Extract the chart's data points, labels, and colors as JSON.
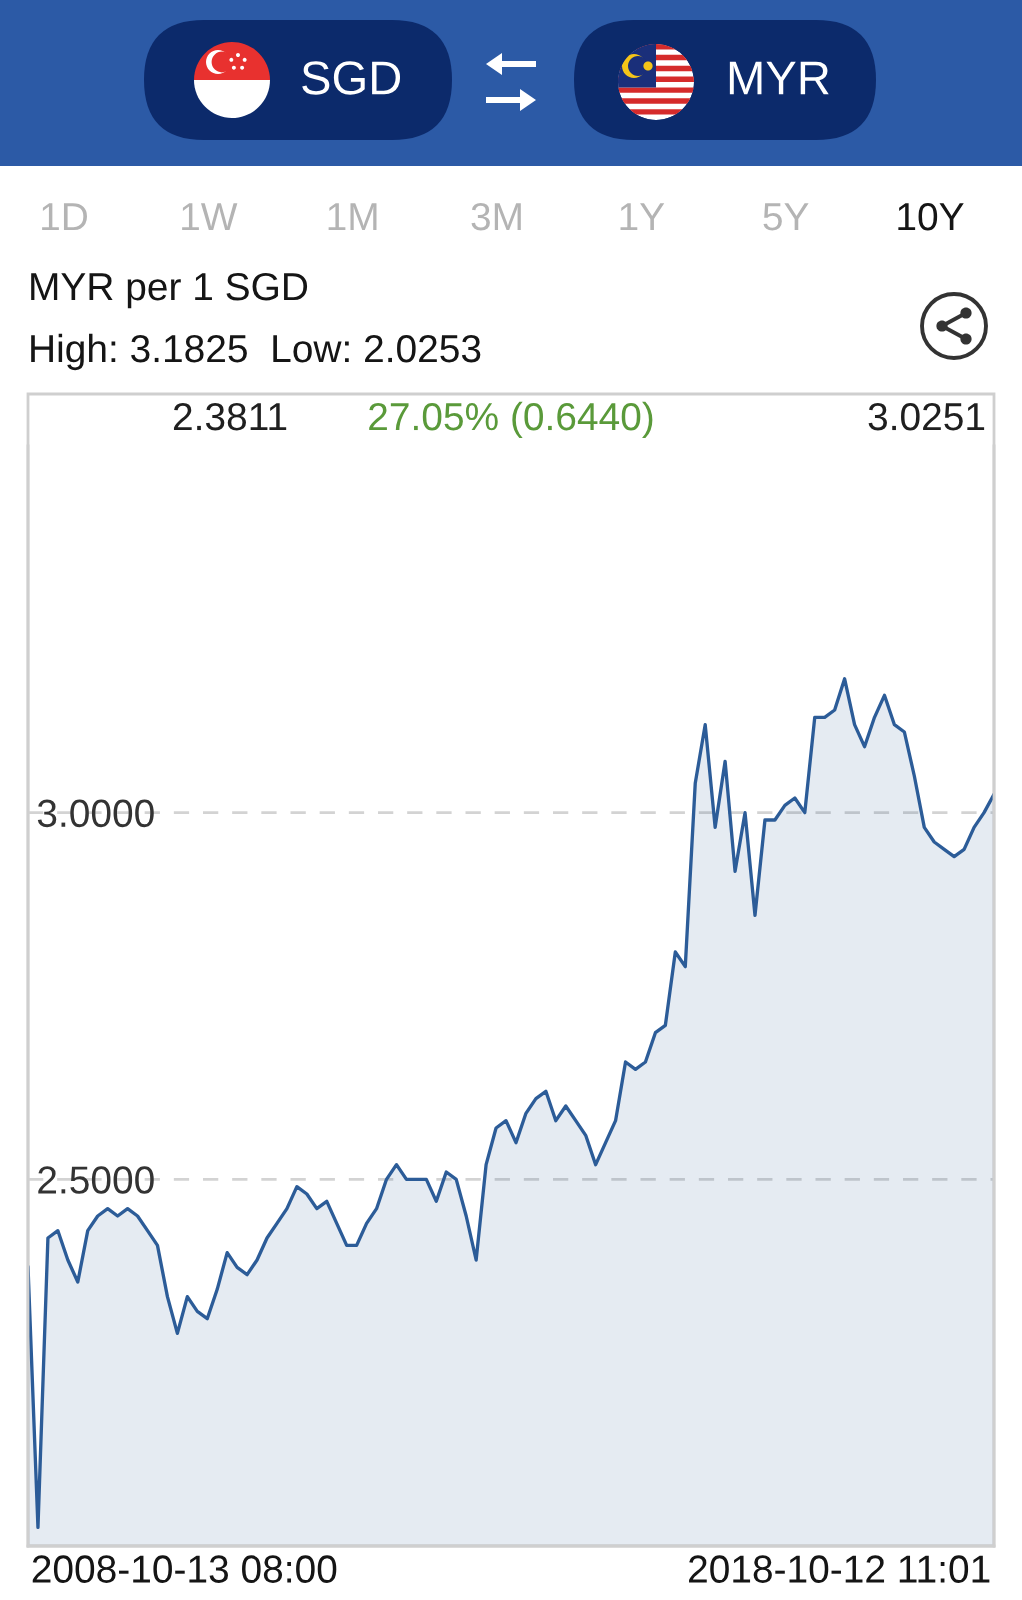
{
  "chart_data": {
    "type": "area",
    "title": "MYR per 1 SGD",
    "subtitle": "High: 3.1825  Low: 2.0253",
    "annotations": [
      "SGD",
      "MYR",
      "1D",
      "1W",
      "1M",
      "3M",
      "1Y",
      "5Y",
      "10Y",
      "2.3811",
      "27.05% (0.6440)",
      "3.0251",
      "2008-10-13 08:00",
      "2018-10-12 11:01"
    ],
    "categories": [
      null,
      null,
      null,
      null,
      null,
      null,
      null,
      null,
      null,
      null,
      null,
      null,
      null,
      null,
      null,
      null,
      null,
      null,
      null,
      null,
      null,
      null,
      null,
      null,
      null,
      null,
      null,
      null,
      null,
      null,
      null,
      null,
      null,
      null,
      null,
      null,
      null,
      null,
      null,
      null,
      null,
      null,
      null,
      null,
      null,
      null,
      null,
      null,
      null,
      null,
      null,
      null,
      null,
      null,
      null,
      null,
      null,
      null,
      null,
      null,
      null,
      null,
      null,
      null,
      null,
      null,
      null,
      null,
      null,
      null,
      null,
      null,
      null,
      null,
      null,
      null,
      null,
      null,
      null,
      null,
      null,
      null,
      null,
      null,
      null,
      null,
      null,
      null,
      null,
      null,
      null,
      null,
      null,
      null,
      null,
      null,
      null,
      null
    ],
    "series": [
      {
        "color": "#2c5c98",
        "values": [
          2.3811,
          2.0253,
          2.42,
          2.43,
          2.39,
          2.36,
          2.43,
          2.45,
          2.46,
          2.45,
          2.46,
          2.45,
          2.43,
          2.41,
          2.34,
          2.29,
          2.34,
          2.32,
          2.31,
          2.35,
          2.4,
          2.38,
          2.37,
          2.39,
          2.42,
          2.44,
          2.46,
          2.49,
          2.48,
          2.46,
          2.47,
          2.44,
          2.41,
          2.41,
          2.44,
          2.46,
          2.5,
          2.52,
          2.5,
          2.5,
          2.5,
          2.47,
          2.51,
          2.5,
          2.45,
          2.39,
          2.52,
          2.57,
          2.58,
          2.55,
          2.59,
          2.61,
          2.62,
          2.58,
          2.6,
          2.58,
          2.56,
          2.52,
          2.55,
          2.58,
          2.66,
          2.65,
          2.66,
          2.7,
          2.71,
          2.81,
          2.79,
          3.04,
          3.12,
          2.98,
          3.07,
          2.92,
          3.0,
          2.86,
          2.99,
          2.99,
          3.01,
          3.02,
          3.0,
          3.13,
          3.13,
          3.14,
          3.1825,
          3.12,
          3.09,
          3.13,
          3.16,
          3.12,
          3.11,
          3.05,
          2.98,
          2.96,
          2.95,
          2.94,
          2.95,
          2.98,
          3.0,
          3.0251
        ]
      }
    ],
    "ylim": [
      2.0,
      3.5
    ],
    "yticks": [
      {
        "value": 3.0,
        "label": "3.0000"
      },
      {
        "value": 2.5,
        "label": "2.5000"
      }
    ],
    "grid": "y"
  }
}
